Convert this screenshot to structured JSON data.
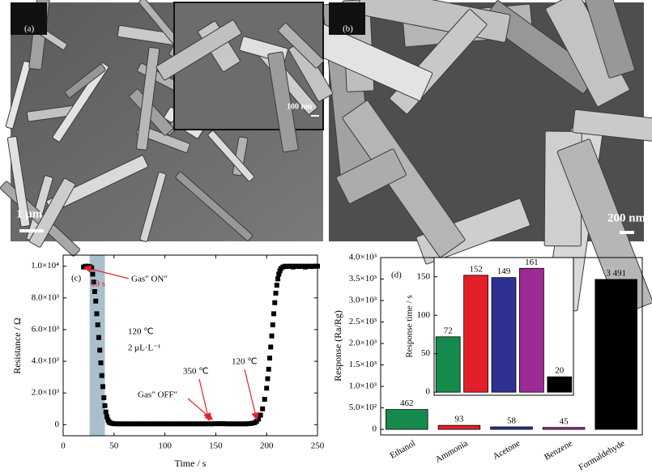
{
  "images": [
    {
      "label": "(a)",
      "scale_bar": "1 μm",
      "inset_scale_bar": "100 nm"
    },
    {
      "label": "(b)",
      "scale_bar": "200 nm"
    }
  ],
  "chart_data": [
    {
      "type": "line",
      "label": "(c)",
      "x_label": "Time / s",
      "y_label": "Resistance / Ω",
      "xlim": [
        0,
        250
      ],
      "xticks": [
        0,
        50,
        100,
        150,
        200,
        250
      ],
      "ylim": [
        -700,
        10700
      ],
      "yticks": [
        0,
        {
          "value": 2000,
          "label": "2.0×10³"
        },
        {
          "value": 4000,
          "label": "4.0×10³"
        },
        {
          "value": 6000,
          "label": "6.0×10³"
        },
        {
          "value": 8000,
          "label": "8.0×10³"
        },
        {
          "value": 10000,
          "label": "1.0×10⁴"
        }
      ],
      "highlight_x": [
        26,
        41
      ],
      "highlight_color": "#a9bfcc",
      "annotations": [
        "19 s",
        "Gas″ ON″",
        "120 ℃",
        "2 μL·L⁻¹",
        "Gas″ OFF″",
        "350 ℃",
        "120 ℃"
      ],
      "series": [
        {
          "color": "#000000",
          "x": [
            20,
            22,
            24,
            26,
            28,
            29,
            30,
            31,
            32,
            33,
            34,
            35,
            36,
            37,
            38,
            39,
            40,
            41,
            42,
            43,
            44,
            45,
            46,
            48,
            50,
            53,
            56,
            59,
            62,
            65,
            68,
            71,
            74,
            77,
            80,
            83,
            86,
            89,
            92,
            95,
            98,
            101,
            104,
            107,
            110,
            113,
            116,
            119,
            122,
            125,
            128,
            131,
            134,
            137,
            140,
            143,
            146,
            149,
            152,
            155,
            158,
            161,
            164,
            167,
            170,
            173,
            176,
            179,
            182,
            185,
            188,
            190,
            192,
            194,
            196,
            198,
            200,
            201,
            202,
            203,
            204,
            205,
            206,
            207,
            208,
            209,
            210,
            211,
            212,
            213,
            214,
            216,
            218,
            220,
            222,
            224,
            226,
            228,
            230,
            232,
            234,
            236,
            238,
            240,
            242,
            244,
            246,
            248,
            250
          ],
          "values": [
            9950,
            10000,
            10000,
            9980,
            9900,
            9500,
            9000,
            8400,
            7800,
            7000,
            6300,
            5500,
            4700,
            3900,
            3100,
            2400,
            1700,
            1200,
            800,
            500,
            300,
            180,
            120,
            80,
            60,
            50,
            50,
            50,
            50,
            50,
            50,
            50,
            50,
            50,
            50,
            50,
            50,
            50,
            50,
            50,
            50,
            50,
            50,
            50,
            50,
            50,
            50,
            50,
            50,
            50,
            50,
            50,
            50,
            50,
            50,
            50,
            50,
            60,
            60,
            60,
            60,
            50,
            50,
            50,
            50,
            50,
            50,
            50,
            60,
            80,
            120,
            200,
            350,
            600,
            1000,
            1600,
            2300,
            2900,
            3500,
            4200,
            4900,
            5600,
            6300,
            7000,
            7700,
            8300,
            8800,
            9200,
            9500,
            9700,
            9850,
            9950,
            10000,
            9980,
            10000,
            10000,
            9950,
            10000,
            10000,
            9980,
            10000,
            10000,
            9950,
            10000,
            10000,
            9980,
            10000,
            10000,
            10000
          ]
        }
      ]
    },
    {
      "type": "bar",
      "label": "(d)",
      "y_label": "Response (Ra/Rg)",
      "categories": [
        "Ethanol",
        "Ammonia",
        "Acetone",
        "Benzene",
        "Formaldehyde"
      ],
      "values": [
        462,
        93,
        58,
        45,
        3491
      ],
      "value_labels": [
        "462",
        "93",
        "58",
        "45",
        "3 491"
      ],
      "colors": [
        "#168a4c",
        "#e41f2a",
        "#2e3192",
        "#9e2a96",
        "#000000"
      ],
      "ylim": [
        -130,
        4000
      ],
      "yticks": [
        0,
        {
          "value": 500,
          "label": "5.0×10²"
        },
        {
          "value": 1000,
          "label": "1.0×10³"
        },
        {
          "value": 1500,
          "label": "1.5×10³"
        },
        {
          "value": 2000,
          "label": "2.0×10³"
        },
        {
          "value": 2500,
          "label": "2.5×10³"
        },
        {
          "value": 3000,
          "label": "3.0×10³"
        },
        {
          "value": 3500,
          "label": "3.5×10³"
        },
        {
          "value": 4000,
          "label": "4.0×10³"
        }
      ]
    },
    {
      "type": "bar",
      "y_label": "Response time / s",
      "values": [
        72,
        152,
        149,
        161,
        20
      ],
      "colors": [
        "#168a4c",
        "#e41f2a",
        "#2e3192",
        "#9e2a96",
        "#000000"
      ],
      "ylim": [
        -4,
        175
      ],
      "yticks": [
        0,
        50,
        100,
        150
      ]
    }
  ]
}
